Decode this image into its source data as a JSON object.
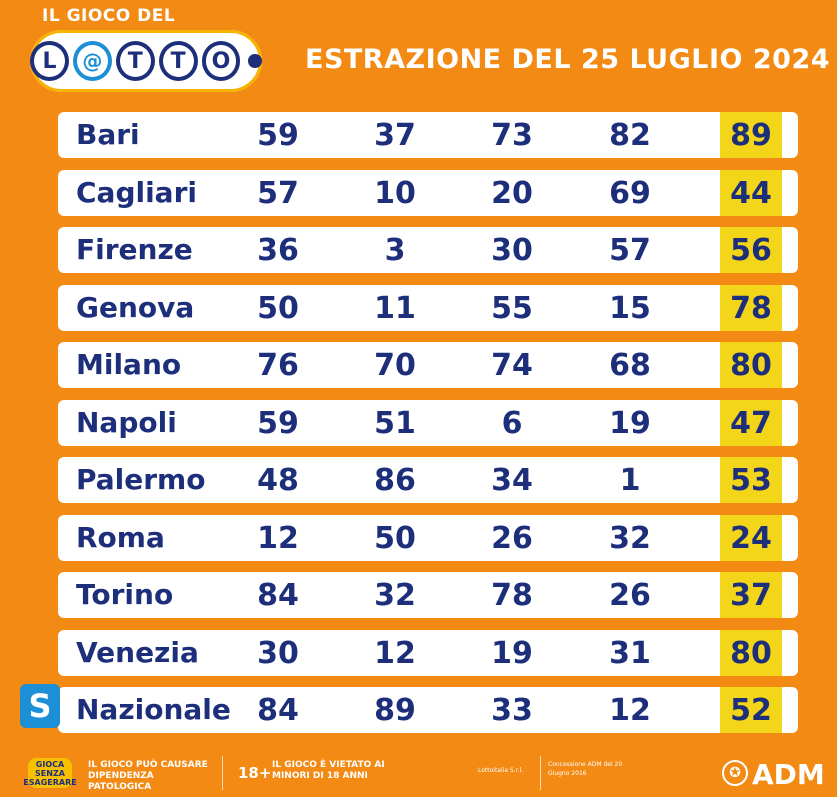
{
  "logo": {
    "top_text": "IL GIOCO DEL",
    "letters": [
      "L",
      "@",
      "T",
      "T",
      "O"
    ]
  },
  "title": "ESTRAZIONE DEL 25 LUGLIO 2024",
  "colors": {
    "background": "#f28a14",
    "text": "#1d2f7a",
    "highlight": "#f3d51a",
    "badge": "#1d8fd6"
  },
  "rows": [
    {
      "city": "Bari",
      "numbers": [
        "59",
        "37",
        "73",
        "82",
        "89"
      ]
    },
    {
      "city": "Cagliari",
      "numbers": [
        "57",
        "10",
        "20",
        "69",
        "44"
      ]
    },
    {
      "city": "Firenze",
      "numbers": [
        "36",
        "3",
        "30",
        "57",
        "56"
      ]
    },
    {
      "city": "Genova",
      "numbers": [
        "50",
        "11",
        "55",
        "15",
        "78"
      ]
    },
    {
      "city": "Milano",
      "numbers": [
        "76",
        "70",
        "74",
        "68",
        "80"
      ]
    },
    {
      "city": "Napoli",
      "numbers": [
        "59",
        "51",
        "6",
        "19",
        "47"
      ]
    },
    {
      "city": "Palermo",
      "numbers": [
        "48",
        "86",
        "34",
        "1",
        "53"
      ]
    },
    {
      "city": "Roma",
      "numbers": [
        "12",
        "50",
        "26",
        "32",
        "24"
      ]
    },
    {
      "city": "Torino",
      "numbers": [
        "84",
        "32",
        "78",
        "26",
        "37"
      ]
    },
    {
      "city": "Venezia",
      "numbers": [
        "30",
        "12",
        "19",
        "31",
        "80"
      ]
    },
    {
      "city": "Nazionale",
      "numbers": [
        "84",
        "89",
        "33",
        "12",
        "52"
      ]
    }
  ],
  "nazionale_badge": "S",
  "footer": {
    "logo_text": "GIOCA SENZA ESAGERARE",
    "warning1": "IL GIOCO PUÒ CAUSARE DIPENDENZA PATOLOGICA",
    "age": "18+",
    "warning2": "IL GIOCO È VIETATO AI MINORI DI 18 ANNI",
    "company": "Lottoitalia S.r.l.",
    "concession": "Concessione ADM del 20 Giugno 2016",
    "adm": "ADM"
  }
}
